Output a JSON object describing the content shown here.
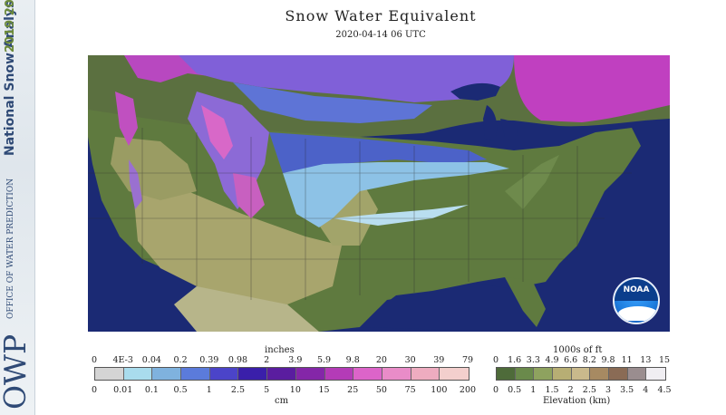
{
  "title": "Snow Water Equivalent",
  "subtitle": "2020-04-14 06 UTC",
  "sidebar": {
    "product": "National Snow Analysis",
    "years": "2019 2020",
    "agency_abbrev": "OWP",
    "agency_name": "OFFICE OF WATER PREDICTION"
  },
  "logo": {
    "text": "NOAA"
  },
  "swe_legend": {
    "top_unit": "inches",
    "bottom_unit": "cm",
    "inch_ticks": [
      "0",
      "4E-3",
      "0.04",
      "0.2",
      "0.39",
      "0.98",
      "2",
      "3.9",
      "5.9",
      "9.8",
      "20",
      "30",
      "39",
      "79"
    ],
    "cm_ticks": [
      "0",
      "0.01",
      "0.1",
      "0.5",
      "1",
      "2.5",
      "5",
      "10",
      "15",
      "25",
      "50",
      "75",
      "100",
      "200"
    ],
    "colors": [
      "#d4d4d4",
      "#a9dced",
      "#7fb2de",
      "#5b7bdb",
      "#4b44c9",
      "#3a1faa",
      "#5a1d9f",
      "#8426a8",
      "#b43bb7",
      "#dc64c9",
      "#e98cc8",
      "#eeacc0",
      "#f3cfcd"
    ]
  },
  "elev_legend": {
    "top_unit": "1000s of ft",
    "bottom_label": "Elevation (km)",
    "ft_ticks": [
      "0",
      "1.6",
      "3.3",
      "4.9",
      "6.6",
      "8.2",
      "9.8",
      "11",
      "13",
      "15"
    ],
    "km_ticks": [
      "0",
      "0.5",
      "1",
      "1.5",
      "2",
      "2.5",
      "3",
      "3.5",
      "4",
      "4.5"
    ],
    "colors": [
      "#4e6b3a",
      "#6a8a4b",
      "#8ea25f",
      "#b7ae74",
      "#c9b98c",
      "#a78a62",
      "#8a6b55",
      "#9a8d8f",
      "#f0eef2"
    ]
  }
}
